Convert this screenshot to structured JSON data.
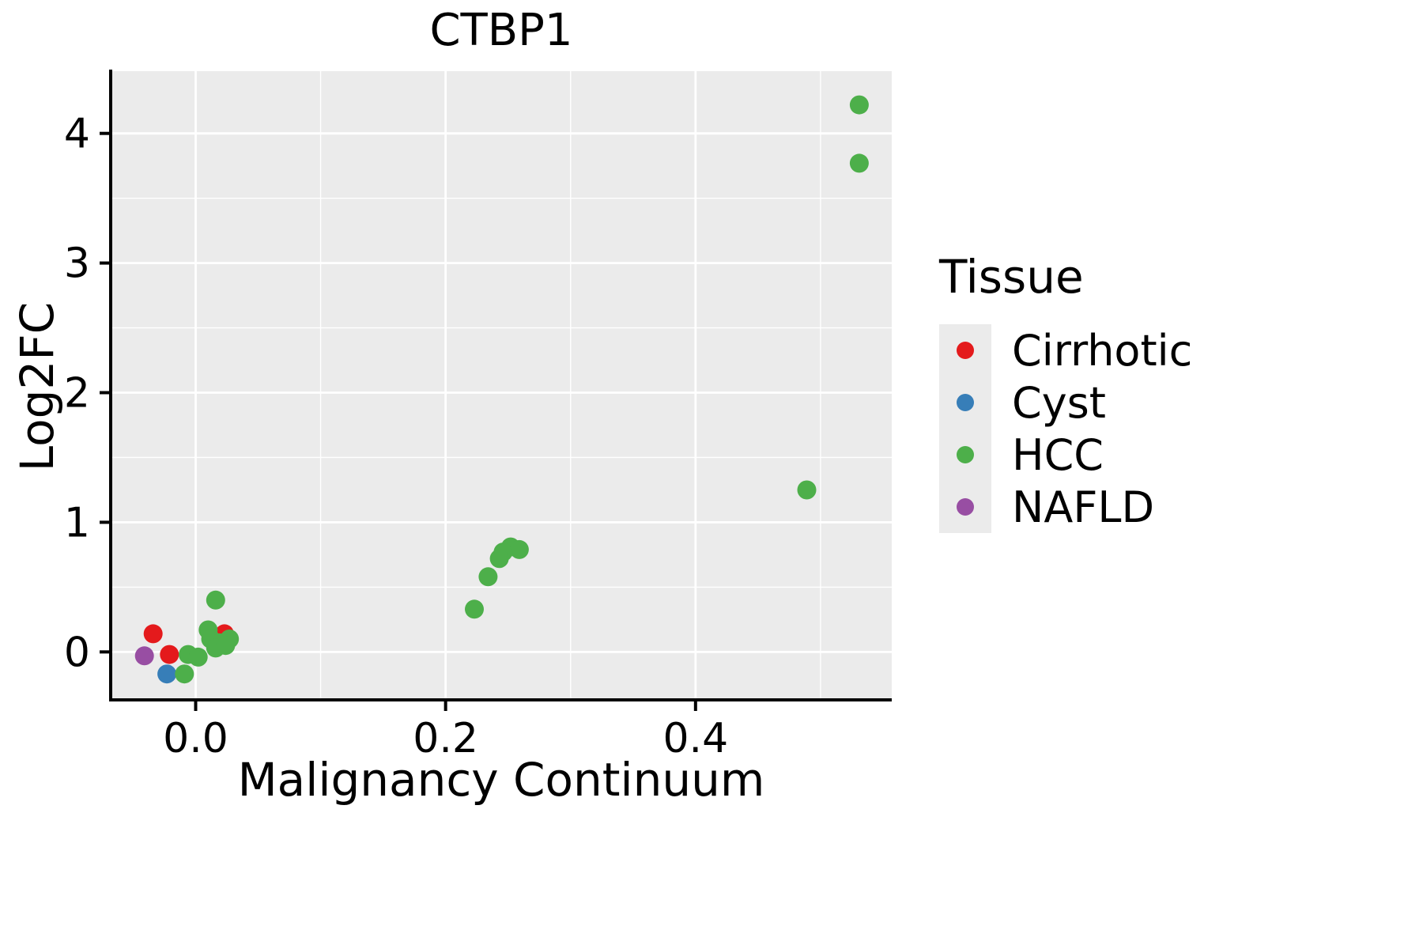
{
  "chart_data": {
    "type": "scatter",
    "title": "CTBP1",
    "xlabel": "Malignancy Continuum",
    "ylabel": "Log2FC",
    "xlim": [
      -0.068,
      0.557
    ],
    "ylim": [
      -0.37,
      4.48
    ],
    "x_ticks": [
      0.0,
      0.2,
      0.4
    ],
    "x_tick_labels": [
      "0.0",
      "0.2",
      "0.4"
    ],
    "x_minor_ticks": [
      0.1,
      0.3,
      0.5
    ],
    "y_ticks": [
      0,
      1,
      2,
      3,
      4
    ],
    "y_tick_labels": [
      "0",
      "1",
      "2",
      "3",
      "4"
    ],
    "y_minor_ticks": [
      0.5,
      1.5,
      2.5,
      3.5
    ],
    "grid": true,
    "legend_title": "Tissue",
    "legend_position": "right",
    "series": [
      {
        "name": "Cirrhotic",
        "color": "#e41a1c",
        "points": [
          [
            -0.034,
            0.14
          ],
          [
            -0.021,
            -0.02
          ],
          [
            0.023,
            0.14
          ]
        ]
      },
      {
        "name": "Cyst",
        "color": "#377eb8",
        "points": [
          [
            -0.023,
            -0.17
          ]
        ]
      },
      {
        "name": "HCC",
        "color": "#4daf4a",
        "points": [
          [
            0.531,
            4.22
          ],
          [
            0.531,
            3.77
          ],
          [
            0.489,
            1.25
          ],
          [
            0.252,
            0.81
          ],
          [
            0.259,
            0.79
          ],
          [
            0.246,
            0.77
          ],
          [
            0.243,
            0.72
          ],
          [
            0.234,
            0.58
          ],
          [
            0.223,
            0.33
          ],
          [
            0.016,
            0.4
          ],
          [
            -0.009,
            -0.17
          ],
          [
            -0.006,
            -0.02
          ],
          [
            0.002,
            -0.04
          ],
          [
            0.01,
            0.17
          ],
          [
            0.012,
            0.1
          ],
          [
            0.019,
            0.07
          ],
          [
            0.016,
            0.03
          ],
          [
            0.027,
            0.1
          ],
          [
            0.024,
            0.05
          ]
        ]
      },
      {
        "name": "NAFLD",
        "color": "#984ea3",
        "points": [
          [
            -0.041,
            -0.03
          ]
        ]
      }
    ]
  },
  "style": {
    "panel_bg": "#ebebeb",
    "grid_color": "#ffffff",
    "axis_color": "#000000",
    "background": "#ffffff",
    "legend_key_bg": "#ebebeb"
  }
}
